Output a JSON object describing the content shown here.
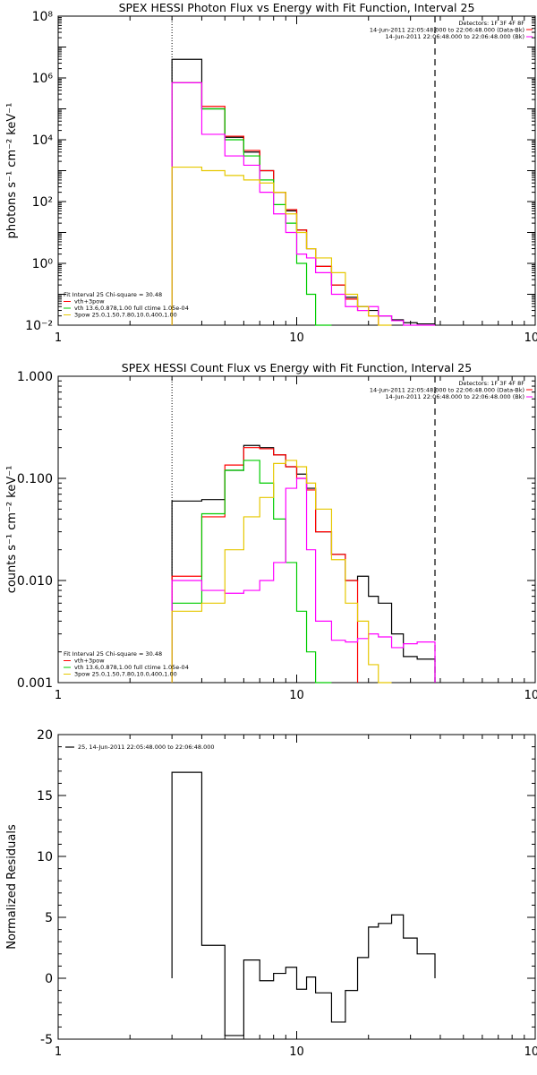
{
  "chart_data": [
    {
      "type": "line",
      "title": "SPEX HESSI Photon Flux vs Energy with Fit Function, Interval 25",
      "xlabel": "",
      "ylabel": "photons s⁻¹ cm⁻² keV⁻¹",
      "xscale": "log",
      "yscale": "log",
      "xlim": [
        1,
        100
      ],
      "ylim": [
        0.01,
        100000000
      ],
      "xtick_labels": [
        "1",
        "10",
        "100"
      ],
      "ytick_labels": [
        "10⁻²",
        "10⁰",
        "10²",
        "10⁴",
        "10⁶",
        "10⁸"
      ],
      "ytick_values": [
        0.01,
        1,
        100,
        10000,
        1000000,
        100000000
      ],
      "vlines": {
        "dotted": 3,
        "dashed": 38
      },
      "header": [
        "Detectors: 1F 3F 4F 8F",
        "14-Jun-2011 22:05:48.000 to 22:06:48.000 (Data-Bk)",
        "14-Jun-2011 22:06:48.000 to 22:06:48.000 (Bk)"
      ],
      "fit_text": [
        "Fit Interval 25   Chi-square = 30.48",
        "vth+3pow",
        "vth 13.6,0.878,1.00  full ctime 1.05e-04",
        "3pow 25.0,1.50,7.80,10.0,400,1.00"
      ],
      "x_edges": [
        3,
        4,
        5,
        6,
        7,
        8,
        9,
        10,
        11,
        12,
        14,
        16,
        18,
        20,
        22,
        25,
        28,
        32,
        38
      ],
      "series": [
        {
          "color": "#000000",
          "values": [
            4000000,
            100000,
            12000,
            4000,
            1000,
            200,
            50,
            12,
            3,
            0.8,
            0.2,
            0.08,
            0.04,
            0.03,
            0.02,
            0.015,
            0.012,
            0.011
          ]
        },
        {
          "color": "#ff0000",
          "values": [
            700000,
            120000,
            13000,
            4500,
            1000,
            200,
            55,
            12,
            3,
            0.8,
            0.2,
            0.07,
            0.03,
            0.02,
            null,
            null,
            null,
            null
          ]
        },
        {
          "color": "#00cc00",
          "values": [
            700000,
            100000,
            10000,
            3000,
            500,
            80,
            20,
            1,
            0.1,
            0.01,
            null,
            null,
            null,
            null,
            null,
            null,
            null,
            null
          ]
        },
        {
          "color": "#ff00ff",
          "values": [
            700000,
            15000,
            3000,
            1500,
            200,
            40,
            10,
            2,
            1.5,
            0.5,
            0.1,
            0.04,
            0.03,
            0.04,
            0.02,
            0.014,
            0.01,
            0.009
          ]
        },
        {
          "color": "#e6c800",
          "values": [
            1300,
            1000,
            700,
            500,
            400,
            200,
            40,
            10,
            3,
            1.5,
            0.5,
            0.1,
            0.04,
            0.02,
            0.01,
            null,
            null,
            null
          ]
        }
      ]
    },
    {
      "type": "line",
      "title": "SPEX HESSI Count Flux vs Energy with Fit Function, Interval 25",
      "xlabel": "",
      "ylabel": "counts s⁻¹ cm⁻² keV⁻¹",
      "xscale": "log",
      "yscale": "log",
      "xlim": [
        1,
        100
      ],
      "ylim": [
        0.001,
        1
      ],
      "xtick_labels": [
        "1",
        "10",
        "100"
      ],
      "ytick_labels": [
        "0.001",
        "0.010",
        "0.100",
        "1.000"
      ],
      "ytick_values": [
        0.001,
        0.01,
        0.1,
        1
      ],
      "vlines": {
        "dotted": 3,
        "dashed": 38
      },
      "header": [
        "Detectors: 1F 3F 4F 8F",
        "14-Jun-2011 22:05:48.000 to 22:06:48.000 (Data-Bk)",
        "14-Jun-2011 22:06:48.000 to 22:06:48.000 (Bk)"
      ],
      "fit_text": [
        "Fit Interval 25   Chi-square = 30.48",
        "vth+3pow",
        "vth 13.6,0.878,1.00  full ctime 1.05e-04",
        "3pow 25.0,1.50,7.80,10.0,400,1.00"
      ],
      "x_edges": [
        3,
        4,
        5,
        6,
        7,
        8,
        9,
        10,
        11,
        12,
        14,
        16,
        18,
        20,
        22,
        25,
        28,
        32,
        38
      ],
      "series": [
        {
          "color": "#000000",
          "values": [
            0.06,
            0.062,
            0.12,
            0.21,
            0.2,
            0.17,
            0.13,
            0.11,
            0.08,
            0.03,
            0.018,
            0.01,
            0.011,
            0.007,
            0.006,
            0.003,
            0.0018,
            0.0017
          ]
        },
        {
          "color": "#ff0000",
          "values": [
            0.011,
            0.042,
            0.135,
            0.2,
            0.195,
            0.17,
            0.13,
            0.1,
            0.077,
            0.03,
            0.018,
            0.01,
            null,
            null,
            null,
            null,
            null,
            null
          ]
        },
        {
          "color": "#00cc00",
          "values": [
            0.006,
            0.045,
            0.12,
            0.15,
            0.09,
            0.04,
            0.015,
            0.005,
            0.002,
            0.001,
            null,
            null,
            null,
            null,
            null,
            null,
            null,
            null
          ]
        },
        {
          "color": "#ff00ff",
          "values": [
            0.01,
            0.008,
            0.0075,
            0.008,
            0.01,
            0.015,
            0.08,
            0.1,
            0.02,
            0.004,
            0.0026,
            0.0025,
            0.0027,
            0.003,
            0.0028,
            0.0022,
            0.0024,
            0.0025
          ]
        },
        {
          "color": "#e6c800",
          "values": [
            0.005,
            0.006,
            0.02,
            0.042,
            0.065,
            0.14,
            0.15,
            0.13,
            0.09,
            0.05,
            0.016,
            0.006,
            0.004,
            0.0015,
            0.001,
            null,
            null,
            null
          ]
        }
      ]
    },
    {
      "type": "line",
      "title": "",
      "xlabel": "",
      "ylabel": "Normalized Residuals",
      "xscale": "log",
      "yscale": "linear",
      "xlim": [
        1,
        100
      ],
      "ylim": [
        -5,
        20
      ],
      "xtick_labels": [
        "1",
        "10",
        "100"
      ],
      "ytick_labels": [
        "-5",
        "0",
        "5",
        "10",
        "15",
        "20"
      ],
      "ytick_values": [
        -5,
        0,
        5,
        10,
        15,
        20
      ],
      "legend": "25, 14-Jun-2011 22:05:48.000 to 22:06:48.000",
      "x_edges": [
        3,
        4,
        5,
        6,
        7,
        8,
        9,
        10,
        11,
        12,
        14,
        16,
        18,
        20,
        22,
        25,
        28,
        32,
        38
      ],
      "series": [
        {
          "color": "#000000",
          "values": [
            16.9,
            2.7,
            -4.7,
            1.5,
            -0.2,
            0.4,
            0.9,
            -0.9,
            0.1,
            -1.2,
            -3.6,
            -1.0,
            1.7,
            4.2,
            4.5,
            5.2,
            3.3,
            2.0
          ]
        }
      ]
    }
  ]
}
